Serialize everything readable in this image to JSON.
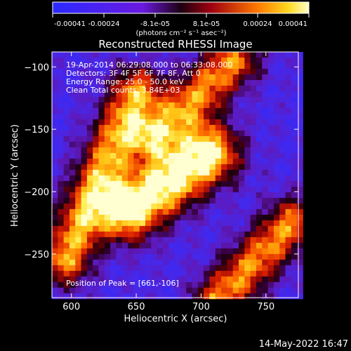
{
  "chart_data": {
    "type": "heatmap",
    "title": "Reconstructed RHESSI Image",
    "xlabel": "Heliocentric X (arcsec)",
    "ylabel": "Heliocentric Y (arcsec)",
    "xlim": [
      585,
      775
    ],
    "ylim": [
      -285,
      -88
    ],
    "xticks": [
      600,
      650,
      700,
      750
    ],
    "yticks": [
      -100,
      -150,
      -200,
      -250
    ],
    "colorbar": {
      "ticks": [
        "-0.00041",
        "-0.00024",
        "-8.1e-05",
        "8.1e-05",
        "0.00024",
        "0.00041"
      ],
      "unit_label": "(photons cm⁻² s⁻¹ asec⁻²)",
      "range": [
        -0.00041,
        0.00041
      ]
    },
    "annotations": {
      "time": "19-Apr-2014 06:29:08.000 to 06:33:08.000",
      "detectors": "Detectors: 3F 4F 5F 6F 7F 8F, Att 0",
      "energy": "Energy Range: 25.0 - 50.0 keV",
      "clean": "Clean     Total counts: 3.84E+03",
      "peak": "Position of Peak = [661,-106]"
    },
    "peak": [
      661,
      -106
    ],
    "features": [
      {
        "name": "central-bright-band",
        "from": [
          645,
          -215
        ],
        "to": [
          705,
          -170
        ],
        "relative_intensity": 1.0
      },
      {
        "name": "left-bright-band",
        "from": [
          595,
          -255
        ],
        "to": [
          650,
          -120
        ],
        "relative_intensity": 0.75
      },
      {
        "name": "upper-right-bright-band",
        "from": [
          665,
          -155
        ],
        "to": [
          725,
          -95
        ],
        "relative_intensity": 0.7
      },
      {
        "name": "lower-right-bright-band",
        "from": [
          715,
          -285
        ],
        "to": [
          770,
          -225
        ],
        "relative_intensity": 0.7
      }
    ]
  },
  "footer": {
    "date": "14-May-2022 16:47"
  }
}
